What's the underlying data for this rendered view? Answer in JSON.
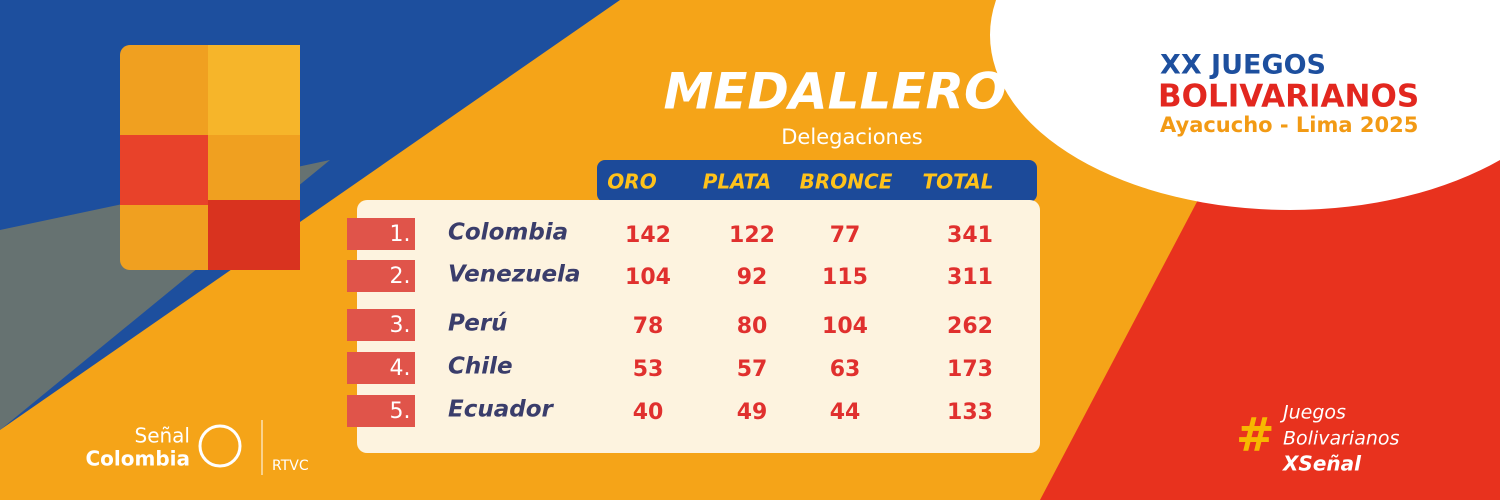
{
  "title": "MEDALLERO",
  "subtitle": "Delegaciones",
  "logo": {
    "line1": "XX JUEGOS",
    "line2": "BOLIVARIANOS",
    "line3": "Ayacucho - Lima 2025"
  },
  "table": {
    "header": [
      "ORO",
      "PLATA",
      "BRONCE",
      "TOTAL"
    ],
    "rows": [
      [
        "1.",
        "Colombia",
        142,
        122,
        77,
        341
      ],
      [
        "2.",
        "Venezuela",
        104,
        92,
        115,
        311
      ],
      [
        "3.",
        "Perú",
        78,
        80,
        104,
        262
      ],
      [
        "4.",
        "Chile",
        53,
        57,
        63,
        173
      ],
      [
        "5.",
        "Ecuador",
        40,
        49,
        44,
        133
      ]
    ]
  },
  "broadcaster": {
    "line1": "Señal",
    "line2": "Colombia",
    "line3": "RTVC"
  },
  "hashtag": {
    "symbol": "#",
    "line1": "Juegos",
    "line2": "Bolivarianos",
    "line3": "XSeñal"
  }
}
